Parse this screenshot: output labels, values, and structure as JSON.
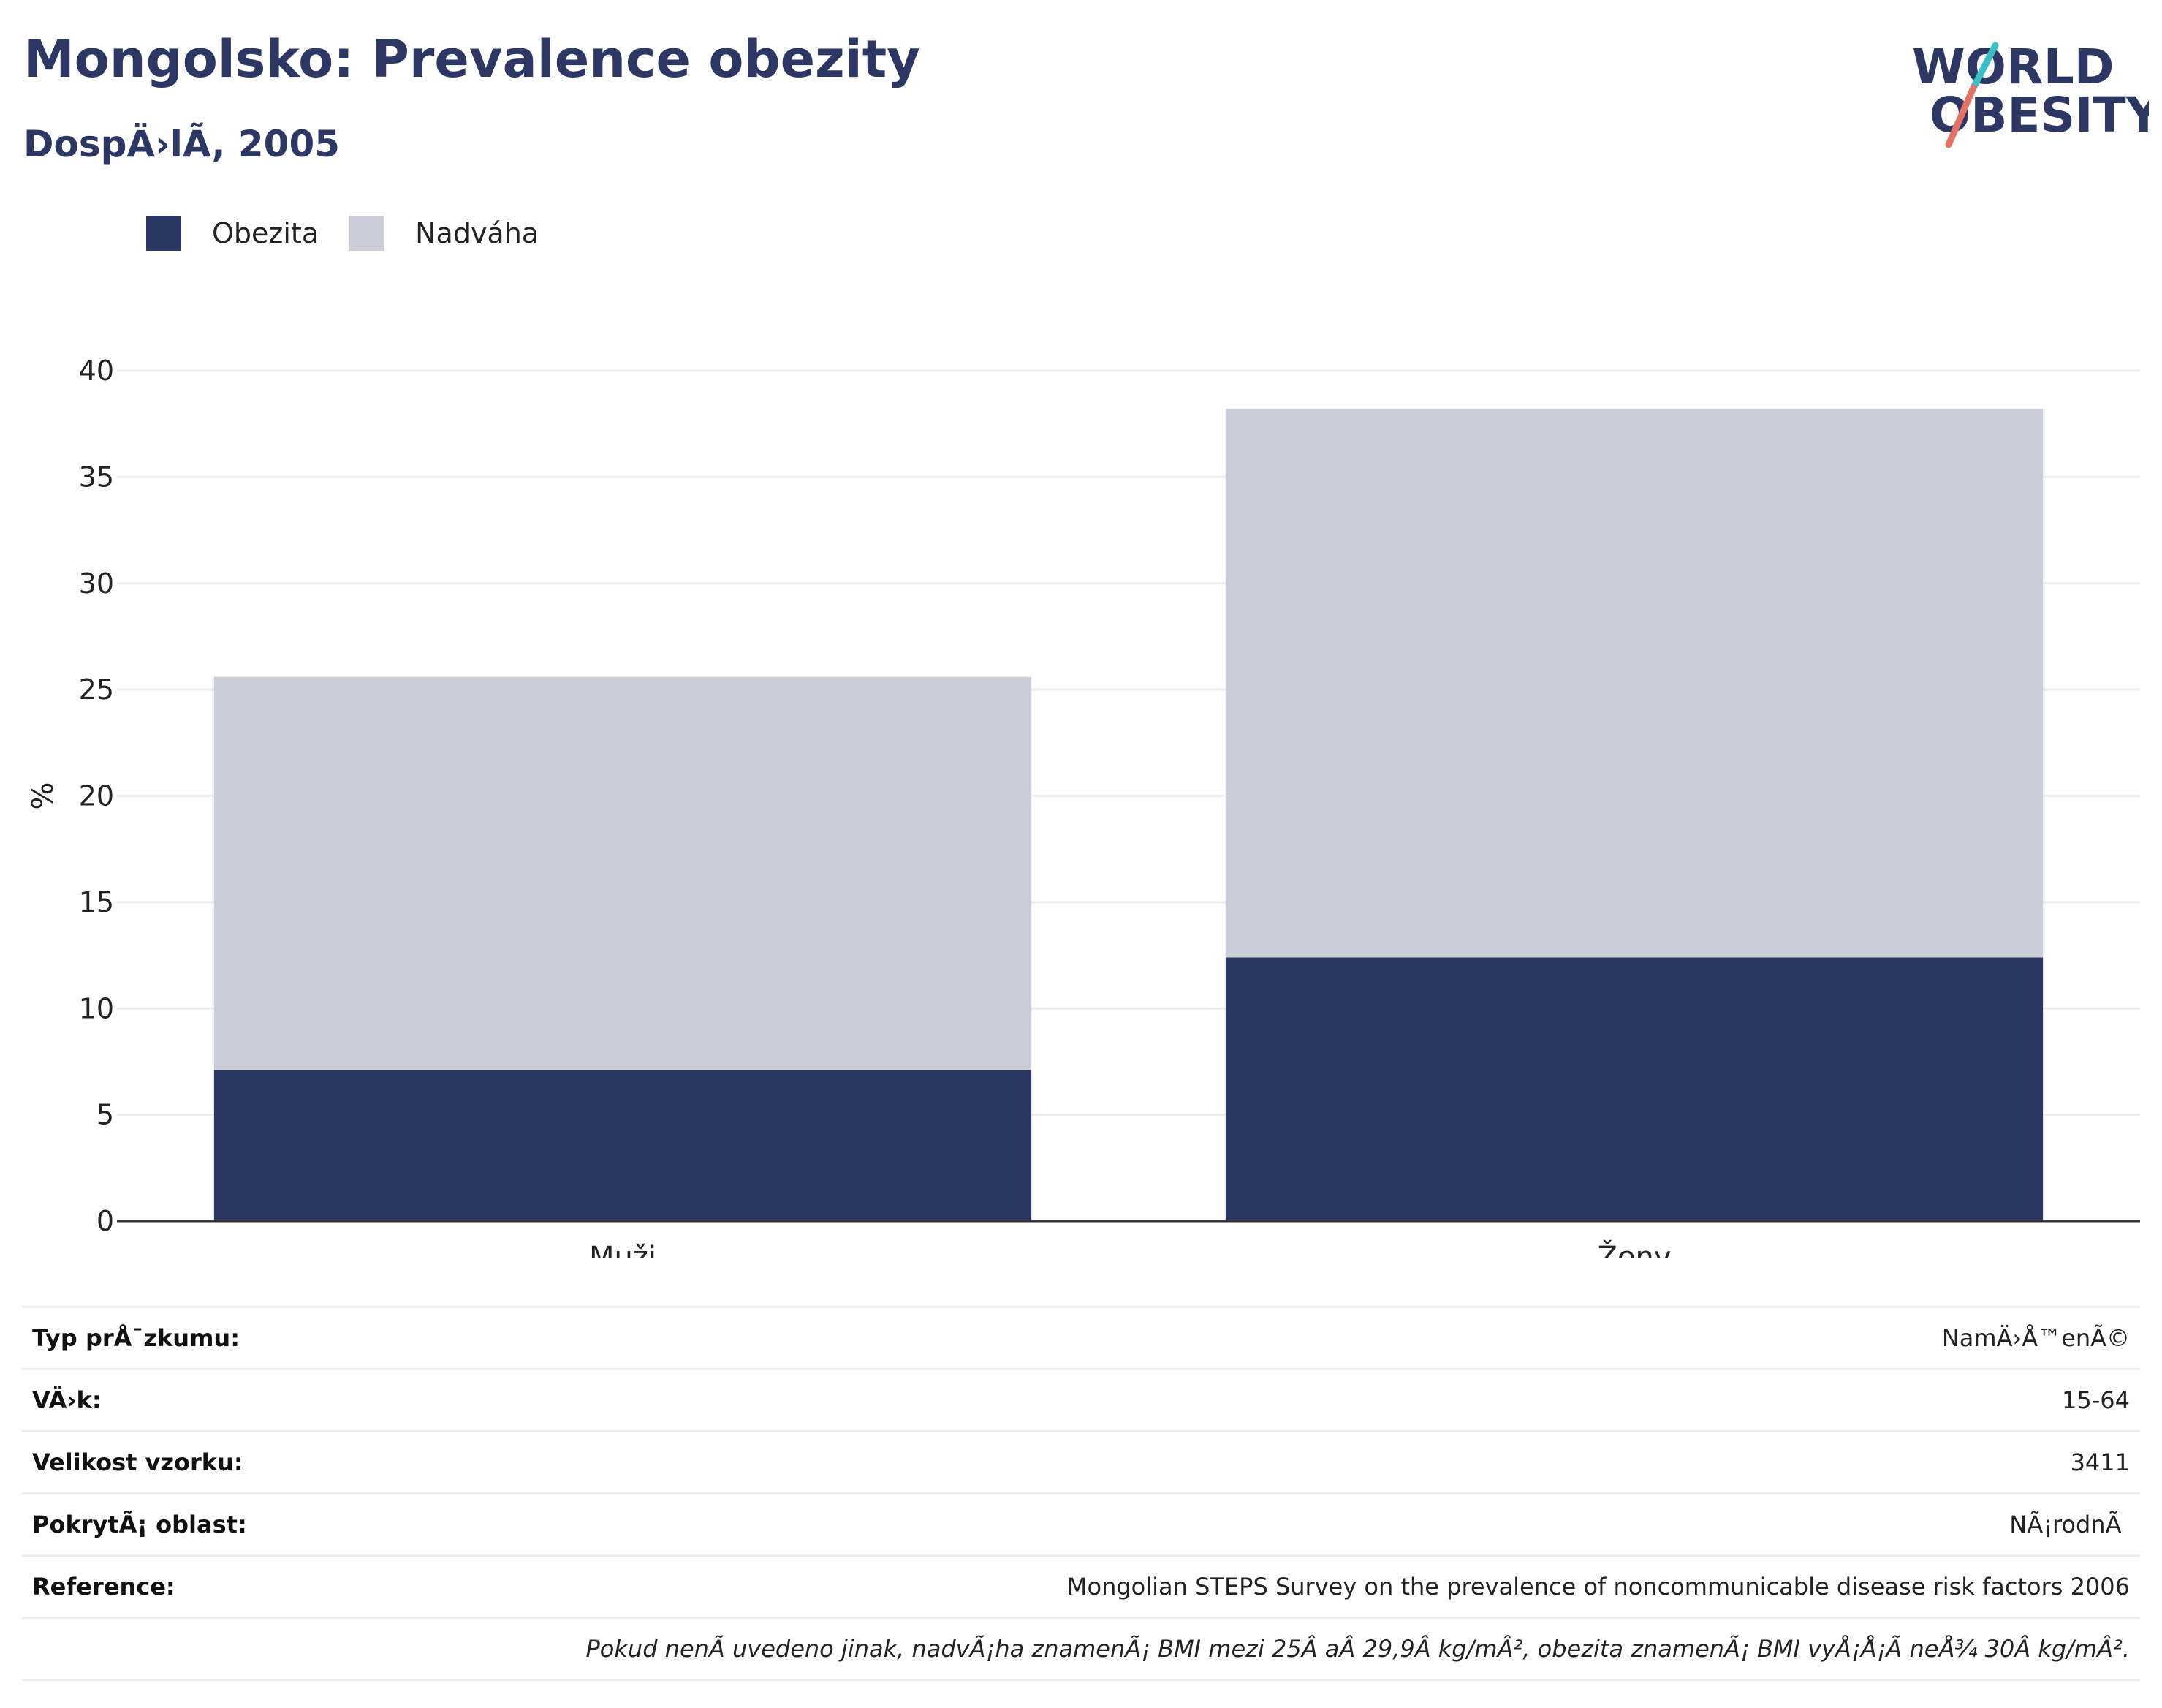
{
  "header": {
    "title": "Mongolsko: Prevalence obezity",
    "subtitle": "DospÄ›lÃ­, 2005"
  },
  "logo": {
    "line1": "WORLD",
    "line2": "OBESITY"
  },
  "legend": [
    {
      "label": "Obezita",
      "color": "#2b3664"
    },
    {
      "label": "Nadváha",
      "color": "#cbcdd8"
    }
  ],
  "chart_data": {
    "type": "bar",
    "stacked": true,
    "categories": [
      "Muži",
      "Ženy"
    ],
    "series": [
      {
        "name": "Obezita",
        "color": "#2b3664",
        "values": [
          7.1,
          12.4
        ]
      },
      {
        "name": "Nadváha",
        "color": "#cbcdd8",
        "values": [
          18.5,
          25.8
        ]
      }
    ],
    "ylabel": "%",
    "ylim": [
      0,
      40
    ],
    "yticks": [
      0,
      5,
      10,
      15,
      20,
      25,
      30,
      35,
      40
    ],
    "grid": true,
    "legend_position": "top-left"
  },
  "info": {
    "rows": [
      {
        "label": "Typ prÅ¯zkumu:",
        "value": "NamÄ›Å™enÃ©"
      },
      {
        "label": "VÄ›k:",
        "value": "15-64"
      },
      {
        "label": "Velikost vzorku:",
        "value": "3411"
      },
      {
        "label": "PokrytÃ¡ oblast:",
        "value": "NÃ¡rodnÃ­"
      },
      {
        "label": "Reference:",
        "value": "Mongolian STEPS Survey on the prevalence of noncommunicable disease risk factors 2006"
      }
    ],
    "footnote": "Pokud nenÃ­ uvedeno jinak, nadvÃ¡ha znamenÃ¡ BMI mezi 25Â aÂ 29,9Â kg/mÂ², obezita znamenÃ¡ BMI vyÅ¡Å¡Ã­ neÅ¾ 30Â kg/mÂ²."
  }
}
